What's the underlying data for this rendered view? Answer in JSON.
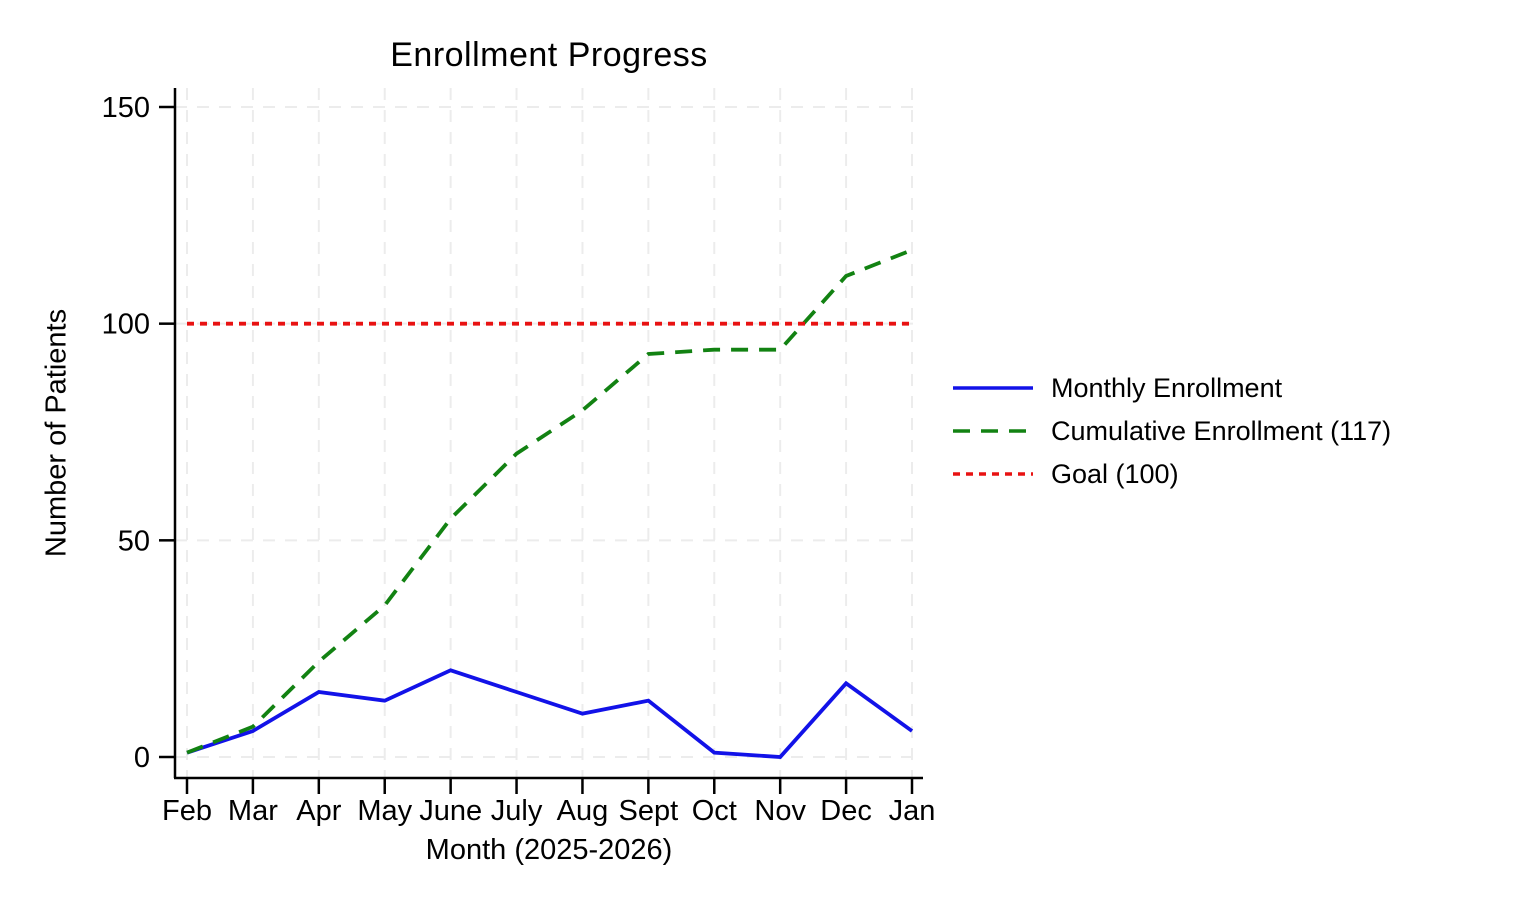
{
  "chart_data": {
    "type": "line",
    "title": "Enrollment Progress",
    "xlabel": "Month (2025-2026)",
    "ylabel": "Number of Patients",
    "categories": [
      "Feb",
      "Mar",
      "Apr",
      "May",
      "June",
      "July",
      "Aug",
      "Sept",
      "Oct",
      "Nov",
      "Dec",
      "Jan"
    ],
    "y_ticks": [
      0,
      50,
      100,
      150
    ],
    "ylim": [
      0,
      155
    ],
    "grid": true,
    "grid_style": "dashed",
    "grid_color": "#ECECEC",
    "axis_color": "#000000",
    "background_color": "#FFFFFF",
    "legend_position": "right-center",
    "goal_value": 100,
    "cumulative_total": 117,
    "series": [
      {
        "name": "Monthly Enrollment",
        "color": "#1212E8",
        "line_style": "solid",
        "values": [
          1,
          6,
          15,
          13,
          20,
          15,
          10,
          13,
          1,
          0,
          17,
          6
        ]
      },
      {
        "name": "Cumulative Enrollment (117)",
        "color": "#128212",
        "line_style": "dashed",
        "values": [
          1,
          7,
          22,
          35,
          55,
          70,
          80,
          93,
          94,
          94,
          111,
          117
        ]
      },
      {
        "name": "Goal (100)",
        "color": "#E81212",
        "line_style": "dotted",
        "values": [
          100,
          100,
          100,
          100,
          100,
          100,
          100,
          100,
          100,
          100,
          100,
          100
        ]
      }
    ]
  }
}
